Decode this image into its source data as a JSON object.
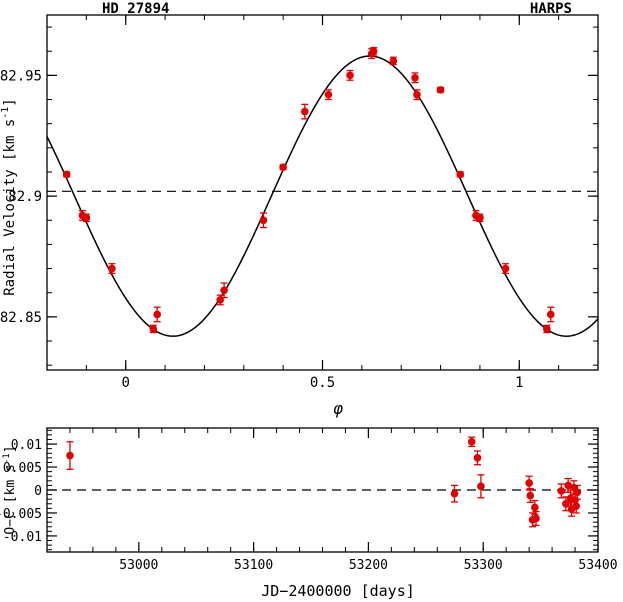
{
  "chart_data": [
    {
      "type": "scatter",
      "title_left": "HD 27894",
      "title_right": "HARPS",
      "xlabel": "φ",
      "ylabel_main": "Radial Velocity [km s",
      "ylabel_sup": "-1",
      "ylabel_close": "]",
      "xlim": [
        -0.2,
        1.2
      ],
      "ylim": [
        82.828,
        82.975
      ],
      "xticks": [
        0,
        0.5,
        1
      ],
      "xtick_labels": [
        "0",
        "0.5",
        "1"
      ],
      "yticks": [
        82.85,
        82.9,
        82.95
      ],
      "ytick_labels": [
        "82.85",
        "82.9",
        "82.95"
      ],
      "mean_line": 82.902,
      "model": {
        "mean": 82.9,
        "amplitude": 0.058,
        "phase_of_minimum": 0.12
      },
      "points": [
        {
          "x": -0.15,
          "y": 82.909,
          "err": 0.001
        },
        {
          "x": -0.11,
          "y": 82.892,
          "err": 0.002
        },
        {
          "x": -0.1,
          "y": 82.891,
          "err": 0.0015
        },
        {
          "x": -0.035,
          "y": 82.87,
          "err": 0.002
        },
        {
          "x": 0.07,
          "y": 82.845,
          "err": 0.0015
        },
        {
          "x": 0.08,
          "y": 82.851,
          "err": 0.003
        },
        {
          "x": 0.24,
          "y": 82.857,
          "err": 0.002
        },
        {
          "x": 0.25,
          "y": 82.861,
          "err": 0.003
        },
        {
          "x": 0.35,
          "y": 82.89,
          "err": 0.003
        },
        {
          "x": 0.4,
          "y": 82.912,
          "err": 0.001
        },
        {
          "x": 0.455,
          "y": 82.935,
          "err": 0.003
        },
        {
          "x": 0.515,
          "y": 82.942,
          "err": 0.002
        },
        {
          "x": 0.57,
          "y": 82.95,
          "err": 0.002
        },
        {
          "x": 0.625,
          "y": 82.959,
          "err": 0.002
        },
        {
          "x": 0.63,
          "y": 82.96,
          "err": 0.0015
        },
        {
          "x": 0.68,
          "y": 82.956,
          "err": 0.0015
        },
        {
          "x": 0.735,
          "y": 82.949,
          "err": 0.002
        },
        {
          "x": 0.74,
          "y": 82.942,
          "err": 0.002
        },
        {
          "x": 0.8,
          "y": 82.944,
          "err": 0.001
        },
        {
          "x": 0.85,
          "y": 82.909,
          "err": 0.001
        },
        {
          "x": 0.89,
          "y": 82.892,
          "err": 0.002
        },
        {
          "x": 0.9,
          "y": 82.891,
          "err": 0.0015
        },
        {
          "x": 0.965,
          "y": 82.87,
          "err": 0.002
        },
        {
          "x": 1.07,
          "y": 82.845,
          "err": 0.0015
        },
        {
          "x": 1.08,
          "y": 82.851,
          "err": 0.003
        }
      ]
    },
    {
      "type": "scatter",
      "xlabel": "JD−2400000 [days]",
      "ylabel_main": "O−C [km s",
      "ylabel_sup": "-1",
      "ylabel_close": "]",
      "xlim": [
        52920,
        53400
      ],
      "ylim": [
        -0.0135,
        0.0135
      ],
      "xticks": [
        53000,
        53100,
        53200,
        53300,
        53400
      ],
      "xtick_labels": [
        "53000",
        "53100",
        "53200",
        "53300",
        "53400"
      ],
      "yticks": [
        -0.01,
        -0.005,
        0,
        0.005,
        0.01
      ],
      "ytick_labels": [
        "-0.01",
        "-0.005",
        "0",
        "0.005",
        "0.01"
      ],
      "zero_line": 0,
      "points": [
        {
          "x": 52940,
          "y": 0.0075,
          "err": 0.003
        },
        {
          "x": 53275,
          "y": -0.0008,
          "err": 0.0018
        },
        {
          "x": 53290,
          "y": 0.0105,
          "err": 0.001
        },
        {
          "x": 53295,
          "y": 0.007,
          "err": 0.0015
        },
        {
          "x": 53298,
          "y": 0.0008,
          "err": 0.0025
        },
        {
          "x": 53340,
          "y": 0.0015,
          "err": 0.0015
        },
        {
          "x": 53341,
          "y": -0.0012,
          "err": 0.0015
        },
        {
          "x": 53343,
          "y": -0.0065,
          "err": 0.0015
        },
        {
          "x": 53345,
          "y": -0.0038,
          "err": 0.0015
        },
        {
          "x": 53346,
          "y": -0.0062,
          "err": 0.0015
        },
        {
          "x": 53368,
          "y": -0.0002,
          "err": 0.0015
        },
        {
          "x": 53372,
          "y": -0.003,
          "err": 0.0015
        },
        {
          "x": 53374,
          "y": 0.001,
          "err": 0.0015
        },
        {
          "x": 53376,
          "y": -0.0018,
          "err": 0.0018
        },
        {
          "x": 53377,
          "y": -0.0042,
          "err": 0.0015
        },
        {
          "x": 53379,
          "y": 0.0005,
          "err": 0.0015
        },
        {
          "x": 53380,
          "y": -0.0022,
          "err": 0.0015
        },
        {
          "x": 53381,
          "y": -0.0035,
          "err": 0.0015
        },
        {
          "x": 53382,
          "y": -0.0005,
          "err": 0.0015
        }
      ]
    }
  ],
  "colors": {
    "points": "#e00000",
    "axes": "#000000",
    "model": "#000000"
  }
}
